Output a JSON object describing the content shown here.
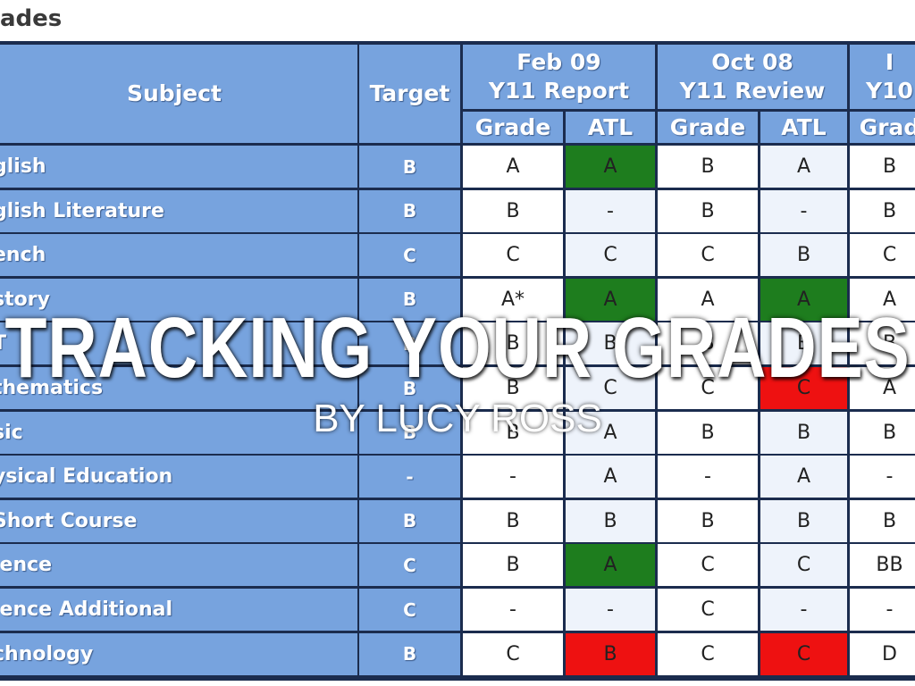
{
  "header": {
    "title": "ades"
  },
  "table": {
    "header_top": [
      "Subject",
      "Target",
      "Feb 09\nY11 Report",
      "Oct 08\nY11 Review",
      "I\nY10"
    ],
    "header_sub": [
      "Grade",
      "ATL",
      "Grade",
      "ATL",
      "Grad"
    ],
    "rows": [
      [
        "glish",
        "B",
        "A",
        "A",
        "B",
        "A",
        "B"
      ],
      [
        "glish Literature",
        "B",
        "B",
        "-",
        "B",
        "-",
        "B"
      ],
      [
        "ench",
        "C",
        "C",
        "C",
        "C",
        "B",
        "C"
      ],
      [
        "story",
        "B",
        "A*",
        "A",
        "A",
        "A",
        "A"
      ],
      [
        "T",
        "B",
        "B",
        "B",
        "B",
        "B",
        "B"
      ],
      [
        "thematics",
        "B",
        "B",
        "C",
        "C",
        "C",
        "A"
      ],
      [
        "sic",
        "B",
        "B",
        "A",
        "B",
        "B",
        "B"
      ],
      [
        "ysical Education",
        "-",
        "-",
        "A",
        "-",
        "A",
        "-"
      ],
      [
        "Short Course",
        "B",
        "B",
        "B",
        "B",
        "B",
        "B"
      ],
      [
        "ience",
        "C",
        "B",
        "A",
        "C",
        "C",
        "BB"
      ],
      [
        "ience Additional",
        "C",
        "-",
        "-",
        "C",
        "-",
        "-"
      ],
      [
        "chnology",
        "B",
        "C",
        "B",
        "C",
        "C",
        "D"
      ]
    ],
    "cell_colors": [
      [
        null,
        "#1e7d1e",
        null,
        null,
        null,
        null
      ],
      [
        null,
        null,
        null,
        null,
        null,
        null
      ],
      [
        null,
        null,
        null,
        null,
        null,
        null
      ],
      [
        null,
        "#1e7d1e",
        null,
        "#1e7d1e",
        null,
        "#1e7d1e"
      ],
      [
        null,
        null,
        null,
        null,
        null,
        null
      ],
      [
        null,
        null,
        null,
        "#ee1111",
        null,
        "#1e7d1e"
      ],
      [
        null,
        null,
        null,
        null,
        null,
        null
      ],
      [
        null,
        null,
        null,
        null,
        null,
        null
      ],
      [
        null,
        null,
        null,
        null,
        null,
        null
      ],
      [
        null,
        "#1e7d1e",
        null,
        null,
        null,
        "#1e7d1e"
      ],
      [
        null,
        null,
        null,
        null,
        null,
        null
      ],
      [
        null,
        "#ee1111",
        null,
        "#ee1111",
        null,
        "#ee1111"
      ]
    ]
  },
  "overlay": {
    "title": "TRACKING YOUR GRADES",
    "subtitle": "BY LUCY ROSS"
  }
}
